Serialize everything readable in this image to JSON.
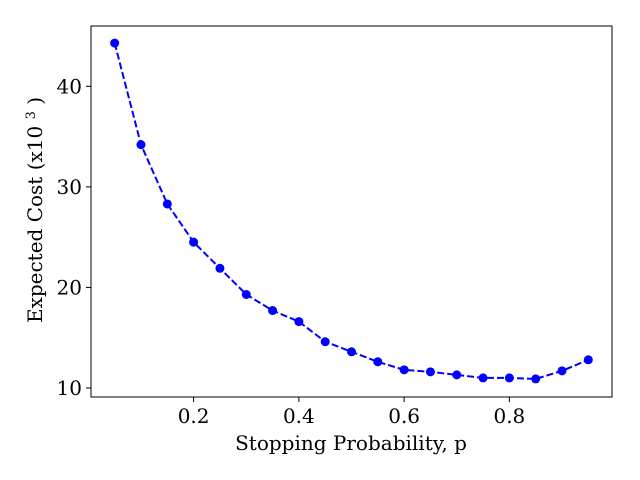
{
  "chart_data": {
    "type": "line",
    "title": "",
    "xlabel": "Stopping Probability, p",
    "ylabel": {
      "prefix": "Expected Cost (x10",
      "superscript": "3",
      "suffix": ")"
    },
    "xlim": [
      0.005,
      0.995
    ],
    "ylim": [
      9.1,
      46.0
    ],
    "xticks": [
      0.2,
      0.4,
      0.6,
      0.8
    ],
    "xtick_labels": [
      "0.2",
      "0.4",
      "0.6",
      "0.8"
    ],
    "yticks": [
      10,
      20,
      30,
      40
    ],
    "ytick_labels": [
      "10",
      "20",
      "30",
      "40"
    ],
    "grid": false,
    "legend": false,
    "series": [
      {
        "x": [
          0.05,
          0.1,
          0.15,
          0.2,
          0.25,
          0.3,
          0.35,
          0.4,
          0.45,
          0.5,
          0.55,
          0.6,
          0.65,
          0.7,
          0.75,
          0.8,
          0.85,
          0.9,
          0.95
        ],
        "y": [
          44.3,
          34.2,
          28.3,
          24.5,
          21.9,
          19.3,
          17.7,
          16.6,
          14.6,
          13.6,
          12.6,
          11.8,
          11.6,
          11.3,
          11.0,
          11.0,
          10.9,
          11.7,
          12.8
        ],
        "color": "#0000ff",
        "line_style": "dashed",
        "marker": "circle"
      }
    ]
  }
}
